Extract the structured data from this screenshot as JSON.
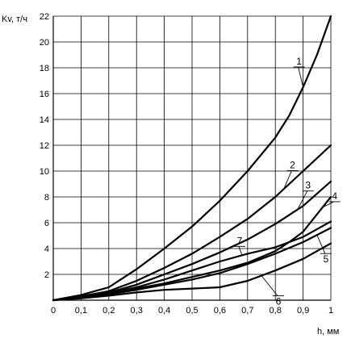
{
  "chart_data": {
    "type": "line",
    "title": "",
    "xlabel": "h, мм",
    "ylabel": "Kv, т/ч",
    "xlim": [
      0,
      1
    ],
    "ylim": [
      0,
      22
    ],
    "x_ticks": [
      0,
      0.1,
      0.2,
      0.3,
      0.4,
      0.5,
      0.6,
      0.7,
      0.8,
      0.9,
      1
    ],
    "x_tick_labels": [
      "0",
      "0,1",
      "0,2",
      "0,3",
      "0,4",
      "0,5",
      "0,6",
      "0,7",
      "0,8",
      "0,9",
      "1"
    ],
    "y_ticks": [
      2,
      4,
      6,
      8,
      10,
      12,
      14,
      16,
      18,
      20,
      22
    ],
    "y_tick_labels": [
      "2",
      "4",
      "6",
      "8",
      "10",
      "12",
      "14",
      "16",
      "18",
      "20",
      "22"
    ],
    "grid": true,
    "legend": "none",
    "series": [
      {
        "name": "1",
        "x": [
          0,
          0.1,
          0.2,
          0.3,
          0.4,
          0.5,
          0.6,
          0.7,
          0.8,
          0.85,
          0.9,
          0.95,
          1
        ],
        "y": [
          0,
          0.4,
          1.0,
          2.4,
          4.0,
          5.7,
          7.7,
          10.0,
          12.6,
          14.3,
          16.5,
          19.0,
          22.0
        ]
      },
      {
        "name": "2",
        "x": [
          0,
          0.1,
          0.2,
          0.3,
          0.4,
          0.5,
          0.6,
          0.7,
          0.8,
          0.9,
          1
        ],
        "y": [
          0,
          0.3,
          0.7,
          1.5,
          2.5,
          3.6,
          4.9,
          6.3,
          8.0,
          10.0,
          12.0
        ]
      },
      {
        "name": "3",
        "x": [
          0,
          0.1,
          0.2,
          0.3,
          0.4,
          0.5,
          0.6,
          0.7,
          0.8,
          0.9,
          1
        ],
        "y": [
          0,
          0.25,
          0.6,
          1.2,
          2.0,
          2.8,
          3.7,
          4.7,
          5.9,
          7.3,
          9.2
        ]
      },
      {
        "name": "4",
        "x": [
          0,
          0.1,
          0.2,
          0.3,
          0.4,
          0.5,
          0.6,
          0.7,
          0.8,
          0.85,
          0.9,
          1
        ],
        "y": [
          0,
          0.2,
          0.5,
          0.9,
          1.3,
          1.8,
          2.3,
          2.9,
          3.8,
          4.5,
          5.3,
          8.0
        ]
      },
      {
        "name": "5",
        "x": [
          0,
          0.1,
          0.2,
          0.3,
          0.4,
          0.5,
          0.6,
          0.7,
          0.8,
          0.9,
          1
        ],
        "y": [
          0,
          0.2,
          0.45,
          0.8,
          1.2,
          1.6,
          2.1,
          2.8,
          3.6,
          4.5,
          5.6
        ]
      },
      {
        "name": "6",
        "x": [
          0,
          0.1,
          0.2,
          0.3,
          0.4,
          0.5,
          0.6,
          0.7,
          0.8,
          0.9,
          1
        ],
        "y": [
          0,
          0.15,
          0.35,
          0.6,
          0.8,
          0.9,
          1.0,
          1.5,
          2.3,
          3.2,
          4.4
        ]
      },
      {
        "name": "7",
        "x": [
          0,
          0.1,
          0.2,
          0.3,
          0.4,
          0.5,
          0.6,
          0.7,
          0.8,
          0.9,
          1
        ],
        "y": [
          0,
          0.25,
          0.55,
          1.0,
          1.6,
          2.3,
          3.0,
          3.6,
          4.1,
          4.9,
          6.1
        ]
      }
    ],
    "annotations": [
      {
        "text": "1",
        "series": "1",
        "at_x": 0.9
      },
      {
        "text": "2",
        "series": "2",
        "at_x": 0.83
      },
      {
        "text": "3",
        "series": "3",
        "at_x": 0.88
      },
      {
        "text": "4",
        "series": "4",
        "at_x": 0.97
      },
      {
        "text": "5",
        "series": "5",
        "at_x": 0.95
      },
      {
        "text": "6",
        "series": "6",
        "at_x": 0.75
      },
      {
        "text": "7",
        "series": "7",
        "at_x": 0.68
      }
    ]
  }
}
